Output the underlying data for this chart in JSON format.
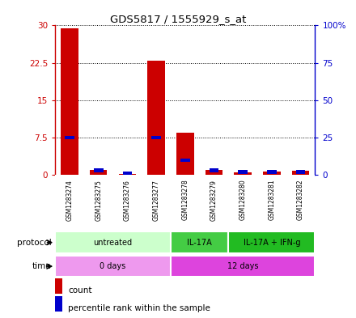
{
  "title": "GDS5817 / 1555929_s_at",
  "samples": [
    "GSM1283274",
    "GSM1283275",
    "GSM1283276",
    "GSM1283277",
    "GSM1283278",
    "GSM1283279",
    "GSM1283280",
    "GSM1283281",
    "GSM1283282"
  ],
  "count_values": [
    29.5,
    1.0,
    0.2,
    23.0,
    8.5,
    1.0,
    0.5,
    0.7,
    0.8
  ],
  "percentile_values": [
    25,
    3,
    1,
    25,
    10,
    3,
    2,
    2,
    2
  ],
  "ylim_left": [
    0,
    30
  ],
  "ylim_right": [
    0,
    100
  ],
  "yticks_left": [
    0,
    7.5,
    15,
    22.5,
    30
  ],
  "yticks_left_labels": [
    "0",
    "7.5",
    "15",
    "22.5",
    "30"
  ],
  "yticks_right": [
    0,
    25,
    50,
    75,
    100
  ],
  "yticks_right_labels": [
    "0",
    "25",
    "50",
    "75",
    "100%"
  ],
  "bar_color": "#cc0000",
  "percentile_color": "#0000cc",
  "protocol_groups": [
    {
      "label": "untreated",
      "start": 0,
      "end": 4,
      "color": "#ccffcc"
    },
    {
      "label": "IL-17A",
      "start": 4,
      "end": 6,
      "color": "#44cc44"
    },
    {
      "label": "IL-17A + IFN-g",
      "start": 6,
      "end": 9,
      "color": "#22bb22"
    }
  ],
  "time_groups": [
    {
      "label": "0 days",
      "start": 0,
      "end": 4,
      "color": "#ee99ee"
    },
    {
      "label": "12 days",
      "start": 4,
      "end": 9,
      "color": "#dd44dd"
    }
  ],
  "background_color": "#ffffff",
  "sample_cell_color": "#cccccc",
  "legend_count_label": "count",
  "legend_percentile_label": "percentile rank within the sample"
}
